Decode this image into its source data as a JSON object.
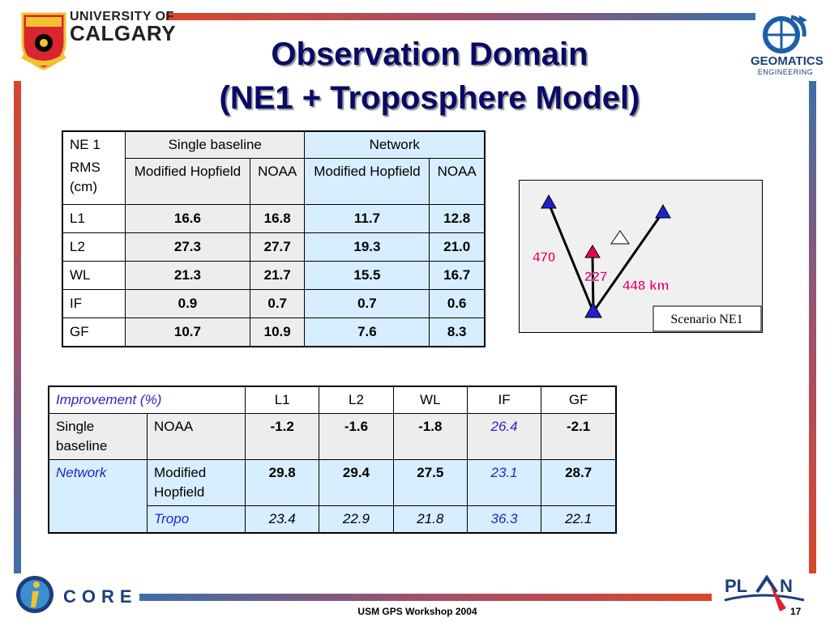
{
  "header": {
    "university_line1": "UNIVERSITY OF",
    "university_line2": "CALGARY",
    "geomatics": "GEOMATICS",
    "engineering": "ENGINEERING"
  },
  "title": {
    "line1": "Observation Domain",
    "line2": "(NE1 + Troposphere Model)"
  },
  "table1": {
    "corner1": "NE 1",
    "corner2": "RMS (cm)",
    "group_single": "Single baseline",
    "group_network": "Network",
    "sub_modified": "Modified Hopfield",
    "sub_noaa": "NOAA",
    "rows": [
      {
        "label": "L1",
        "values": [
          "16.6",
          "16.8",
          "11.7",
          "12.8"
        ]
      },
      {
        "label": "L2",
        "values": [
          "27.3",
          "27.7",
          "19.3",
          "21.0"
        ]
      },
      {
        "label": "WL",
        "values": [
          "21.3",
          "21.7",
          "15.5",
          "16.7"
        ]
      },
      {
        "label": "IF",
        "values": [
          "0.9",
          "0.7",
          "0.7",
          "0.6"
        ]
      },
      {
        "label": "GF",
        "values": [
          "10.7",
          "10.9",
          "7.6",
          "8.3"
        ]
      }
    ]
  },
  "scenario": {
    "dist1": "470",
    "dist2": "227",
    "dist3": "448 km",
    "label": "Scenario NE1",
    "accent": "#e8005a",
    "station_color": "#2020cc"
  },
  "table2": {
    "header": "Improvement (%)",
    "columns": [
      "L1",
      "L2",
      "WL",
      "IF",
      "GF"
    ],
    "single_label": "Single baseline",
    "single_model": "NOAA",
    "single_values": [
      "-1.2",
      "-1.6",
      "-1.8",
      "26.4",
      "-2.1"
    ],
    "network_label": "Network",
    "network_model1": "Modified Hopfield",
    "network_values1": [
      "29.8",
      "29.4",
      "27.5",
      "23.1",
      "28.7"
    ],
    "network_model2": "Tropo",
    "network_values2": [
      "23.4",
      "22.9",
      "21.8",
      "36.3",
      "22.1"
    ]
  },
  "footer": {
    "core": "CORE",
    "workshop": "USM GPS Workshop 2004",
    "page": "17"
  }
}
